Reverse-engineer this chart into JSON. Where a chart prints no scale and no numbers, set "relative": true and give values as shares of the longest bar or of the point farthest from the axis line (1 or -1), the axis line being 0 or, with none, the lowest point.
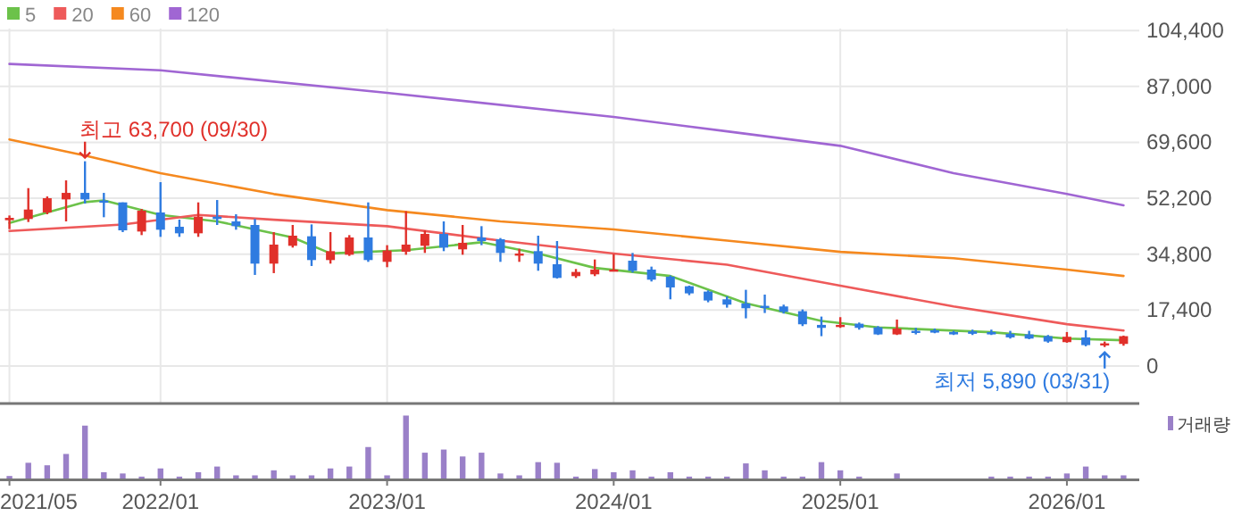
{
  "chart_data": [
    {
      "type": "candlestick",
      "x": [
        "2021-05",
        "2021-06",
        "2021-07",
        "2021-08",
        "2021-09",
        "2021-10",
        "2021-11",
        "2021-12",
        "2022-01",
        "2022-02",
        "2022-03",
        "2022-04",
        "2022-05",
        "2022-06",
        "2022-07",
        "2022-08",
        "2022-09",
        "2022-10",
        "2022-11",
        "2022-12",
        "2023-01",
        "2023-02",
        "2023-03",
        "2023-04",
        "2023-05",
        "2023-06",
        "2023-07",
        "2023-08",
        "2023-09",
        "2023-10",
        "2023-11",
        "2023-12",
        "2024-01",
        "2024-02",
        "2024-03",
        "2024-04",
        "2024-05",
        "2024-06",
        "2024-07",
        "2024-08",
        "2024-09",
        "2024-10",
        "2024-11",
        "2024-12",
        "2025-01",
        "2025-02",
        "2025-03",
        "2025-04",
        "2025-05",
        "2025-06",
        "2025-07",
        "2025-08",
        "2025-09",
        "2025-10",
        "2025-11",
        "2025-12",
        "2026-01",
        "2026-02",
        "2026-03",
        "2026-04"
      ],
      "ohlc": [
        [
          45350,
          46830,
          42570,
          46090
        ],
        [
          45720,
          55340,
          44790,
          48680
        ],
        [
          47760,
          52750,
          47200,
          52200
        ],
        [
          51830,
          57750,
          44980,
          53860
        ],
        [
          53860,
          63700,
          50530,
          51830
        ],
        [
          51460,
          53860,
          46280,
          50900
        ],
        [
          50900,
          50900,
          41650,
          42200
        ],
        [
          41830,
          48860,
          40720,
          48310
        ],
        [
          47760,
          57200,
          40170,
          42390
        ],
        [
          43310,
          45540,
          40170,
          41280
        ],
        [
          41280,
          50900,
          40170,
          46460
        ],
        [
          46460,
          51640,
          43870,
          45720
        ],
        [
          44980,
          47200,
          42390,
          43500
        ],
        [
          43870,
          45720,
          28320,
          31840
        ],
        [
          31840,
          41650,
          28880,
          37760
        ],
        [
          37390,
          43870,
          36830,
          40540
        ],
        [
          40350,
          44050,
          31100,
          32950
        ],
        [
          32950,
          41650,
          31840,
          35720
        ],
        [
          34610,
          40720,
          34240,
          39980
        ],
        [
          39980,
          50900,
          32390,
          32950
        ],
        [
          32390,
          37580,
          30730,
          35910
        ],
        [
          35540,
          48130,
          34610,
          37760
        ],
        [
          37390,
          42200,
          35170,
          41090
        ],
        [
          41090,
          44980,
          35720,
          36830
        ],
        [
          36280,
          43870,
          34610,
          38320
        ],
        [
          39980,
          43500,
          37580,
          38870
        ],
        [
          39430,
          39800,
          32390,
          35170
        ],
        [
          34610,
          36460,
          32390,
          34980
        ],
        [
          35720,
          40540,
          29620,
          31840
        ],
        [
          31650,
          38870,
          27210,
          27390
        ],
        [
          27950,
          30170,
          27390,
          29250
        ],
        [
          28510,
          33130,
          27950,
          29990
        ],
        [
          29620,
          34800,
          29430,
          29990
        ],
        [
          32760,
          35170,
          29060,
          29620
        ],
        [
          29990,
          30910,
          26280,
          26840
        ],
        [
          27770,
          28140,
          20730,
          24430
        ],
        [
          24800,
          24990,
          22030,
          22580
        ],
        [
          23140,
          23510,
          19810,
          20360
        ],
        [
          20730,
          21660,
          18140,
          19070
        ],
        [
          19440,
          23690,
          14810,
          17950
        ],
        [
          18700,
          22210,
          16470,
          18320
        ],
        [
          18510,
          19070,
          16290,
          16840
        ],
        [
          17030,
          17580,
          12400,
          12960
        ],
        [
          12770,
          15360,
          9260,
          11850
        ],
        [
          12400,
          15180,
          11850,
          12770
        ],
        [
          13140,
          13510,
          11290,
          11850
        ],
        [
          12030,
          12400,
          9630,
          9810
        ],
        [
          9810,
          14440,
          9630,
          11660
        ],
        [
          10920,
          11850,
          9810,
          10370
        ],
        [
          11110,
          11660,
          10180,
          10370
        ],
        [
          10550,
          10920,
          9630,
          9810
        ],
        [
          10740,
          11290,
          9630,
          10000
        ],
        [
          10550,
          11290,
          9630,
          9810
        ],
        [
          10000,
          10920,
          8510,
          8880
        ],
        [
          9810,
          10920,
          8330,
          8510
        ],
        [
          9260,
          9630,
          7220,
          7590
        ],
        [
          7400,
          10550,
          7220,
          9070
        ],
        [
          8880,
          11110,
          6110,
          6480
        ],
        [
          6660,
          7590,
          5890,
          7030
        ],
        [
          6850,
          9440,
          6290,
          9260
        ]
      ],
      "colors": [
        "#e0302a",
        "#e0302a",
        "#e0302a",
        "#e0302a",
        "#2f7be0",
        "#2f7be0",
        "#2f7be0",
        "#e0302a",
        "#2f7be0",
        "#2f7be0",
        "#e0302a",
        "#2f7be0",
        "#2f7be0",
        "#2f7be0",
        "#e0302a",
        "#e0302a",
        "#2f7be0",
        "#e0302a",
        "#e0302a",
        "#2f7be0",
        "#e0302a",
        "#e0302a",
        "#e0302a",
        "#2f7be0",
        "#e0302a",
        "#2f7be0",
        "#2f7be0",
        "#e0302a",
        "#2f7be0",
        "#2f7be0",
        "#e0302a",
        "#e0302a",
        "#e0302a",
        "#2f7be0",
        "#2f7be0",
        "#2f7be0",
        "#2f7be0",
        "#2f7be0",
        "#2f7be0",
        "#2f7be0",
        "#2f7be0",
        "#2f7be0",
        "#2f7be0",
        "#2f7be0",
        "#e0302a",
        "#2f7be0",
        "#2f7be0",
        "#e0302a",
        "#2f7be0",
        "#2f7be0",
        "#2f7be0",
        "#2f7be0",
        "#2f7be0",
        "#2f7be0",
        "#2f7be0",
        "#2f7be0",
        "#e0302a",
        "#2f7be0",
        "#e0302a",
        "#e0302a"
      ],
      "series": [
        {
          "name": "5",
          "type": "line",
          "color": "#6cc24a",
          "x": [
            "2021-05",
            "2021-09",
            "2021-10",
            "2022-01",
            "2022-04",
            "2022-08",
            "2022-10",
            "2023-02",
            "2023-06",
            "2023-09",
            "2023-12",
            "2024-04",
            "2024-08",
            "2024-12",
            "2025-03",
            "2025-09",
            "2026-01",
            "2026-04"
          ],
          "values": [
            44500,
            51000,
            51500,
            47000,
            45000,
            40000,
            35000,
            36000,
            38500,
            35000,
            30500,
            28000,
            19500,
            14000,
            12000,
            10500,
            8500,
            8000
          ]
        },
        {
          "name": "20",
          "type": "line",
          "color": "#ee5a5a",
          "x": [
            "2021-05",
            "2021-11",
            "2022-03",
            "2022-07",
            "2023-01",
            "2023-07",
            "2024-01",
            "2024-07",
            "2025-01",
            "2025-07",
            "2026-01",
            "2026-04"
          ],
          "values": [
            42000,
            44000,
            47000,
            45500,
            43500,
            39000,
            35000,
            31500,
            25000,
            18500,
            13000,
            11000
          ]
        },
        {
          "name": "60",
          "type": "line",
          "color": "#f5891f",
          "x": [
            "2021-05",
            "2021-09",
            "2022-01",
            "2022-07",
            "2023-01",
            "2023-07",
            "2024-01",
            "2024-07",
            "2025-01",
            "2025-07",
            "2026-01",
            "2026-04"
          ],
          "values": [
            70500,
            65500,
            60000,
            53500,
            48500,
            45000,
            42500,
            39000,
            35500,
            33500,
            30000,
            28000
          ]
        },
        {
          "name": "120",
          "type": "line",
          "color": "#a066d3",
          "x": [
            "2021-05",
            "2022-01",
            "2023-01",
            "2024-01",
            "2024-07",
            "2025-01",
            "2025-07",
            "2026-01",
            "2026-04"
          ],
          "values": [
            94000,
            92000,
            85000,
            77500,
            73000,
            68500,
            60000,
            53500,
            50000
          ]
        }
      ],
      "xlim": [
        "2021-04-16",
        "2026-04-26"
      ],
      "xticks": [
        {
          "value": "2021-05",
          "label": null
        },
        {
          "value": "2022-01",
          "label": null
        },
        {
          "value": "2023-01",
          "label": null
        },
        {
          "value": "2024-01",
          "label": null
        },
        {
          "value": "2025-01",
          "label": null
        },
        {
          "value": "2026-01",
          "label": null
        }
      ],
      "ylim": [
        -11700,
        105000
      ],
      "yticks": [
        0,
        {
          "value": 17400,
          "label": "17,400"
        },
        {
          "value": 34800,
          "label": "34,800"
        },
        {
          "value": 52200,
          "label": "52,200"
        },
        {
          "value": 69600,
          "label": "69,600"
        },
        {
          "value": 87000,
          "label": "87,000"
        },
        {
          "value": 104400,
          "label": "104,400"
        }
      ],
      "tick_labels": "y",
      "grid": true,
      "legend": "top left",
      "annotations": [
        {
          "text": "최고 63,700 (09/30)",
          "x": "2021-09",
          "y": 63700
        },
        {
          "text": "최저 5,890 (03/31)",
          "x": "2026-03",
          "y": 5890
        }
      ]
    },
    {
      "type": "bar",
      "x": [
        "2021-05",
        "2021-06",
        "2021-07",
        "2021-08",
        "2021-09",
        "2021-10",
        "2021-11",
        "2021-12",
        "2022-01",
        "2022-02",
        "2022-03",
        "2022-04",
        "2022-05",
        "2022-06",
        "2022-07",
        "2022-08",
        "2022-09",
        "2022-10",
        "2022-11",
        "2022-12",
        "2023-01",
        "2023-02",
        "2023-03",
        "2023-04",
        "2023-05",
        "2023-06",
        "2023-07",
        "2023-08",
        "2023-09",
        "2023-10",
        "2023-11",
        "2023-12",
        "2024-01",
        "2024-02",
        "2024-03",
        "2024-04",
        "2024-05",
        "2024-06",
        "2024-07",
        "2024-08",
        "2024-09",
        "2024-10",
        "2024-11",
        "2024-12",
        "2025-01",
        "2025-02",
        "2025-03",
        "2025-04",
        "2025-05",
        "2025-06",
        "2025-07",
        "2025-08",
        "2025-09",
        "2025-10",
        "2025-11",
        "2025-12",
        "2026-01",
        "2026-02",
        "2026-03",
        "2026-04"
      ],
      "series": [
        {
          "name": "거래량",
          "color": "#9a80c8",
          "values": [
            0.04,
            0.25,
            0.21,
            0.39,
            0.84,
            0.1,
            0.08,
            0.03,
            0.16,
            0.03,
            0.1,
            0.19,
            0.05,
            0.05,
            0.13,
            0.05,
            0.05,
            0.16,
            0.19,
            0.5,
            0.05,
            1,
            0.41,
            0.46,
            0.35,
            0.41,
            0.08,
            0.05,
            0.26,
            0.25,
            0.03,
            0.15,
            0.1,
            0.13,
            0.03,
            0.1,
            0.03,
            0.03,
            0.03,
            0.24,
            0.13,
            0.03,
            0.03,
            0.26,
            0.13,
            0.03,
            null,
            0.08,
            null,
            null,
            null,
            null,
            0.03,
            0.03,
            0.03,
            0.03,
            0.08,
            0.19,
            0.05,
            0.05
          ]
        }
      ],
      "relative": true,
      "xlim": [
        "2021-04-16",
        "2026-04-26"
      ],
      "xticks": [
        {
          "value": "2021-05",
          "label": "2021/05"
        },
        {
          "value": "2022-01",
          "label": "2022/01"
        },
        {
          "value": "2023-01",
          "label": "2023/01"
        },
        {
          "value": "2024-01",
          "label": "2024/01"
        },
        {
          "value": "2025-01",
          "label": "2025/01"
        },
        {
          "value": "2026-01",
          "label": "2026/01"
        }
      ],
      "tick_labels": "x",
      "legend": "top right"
    }
  ]
}
